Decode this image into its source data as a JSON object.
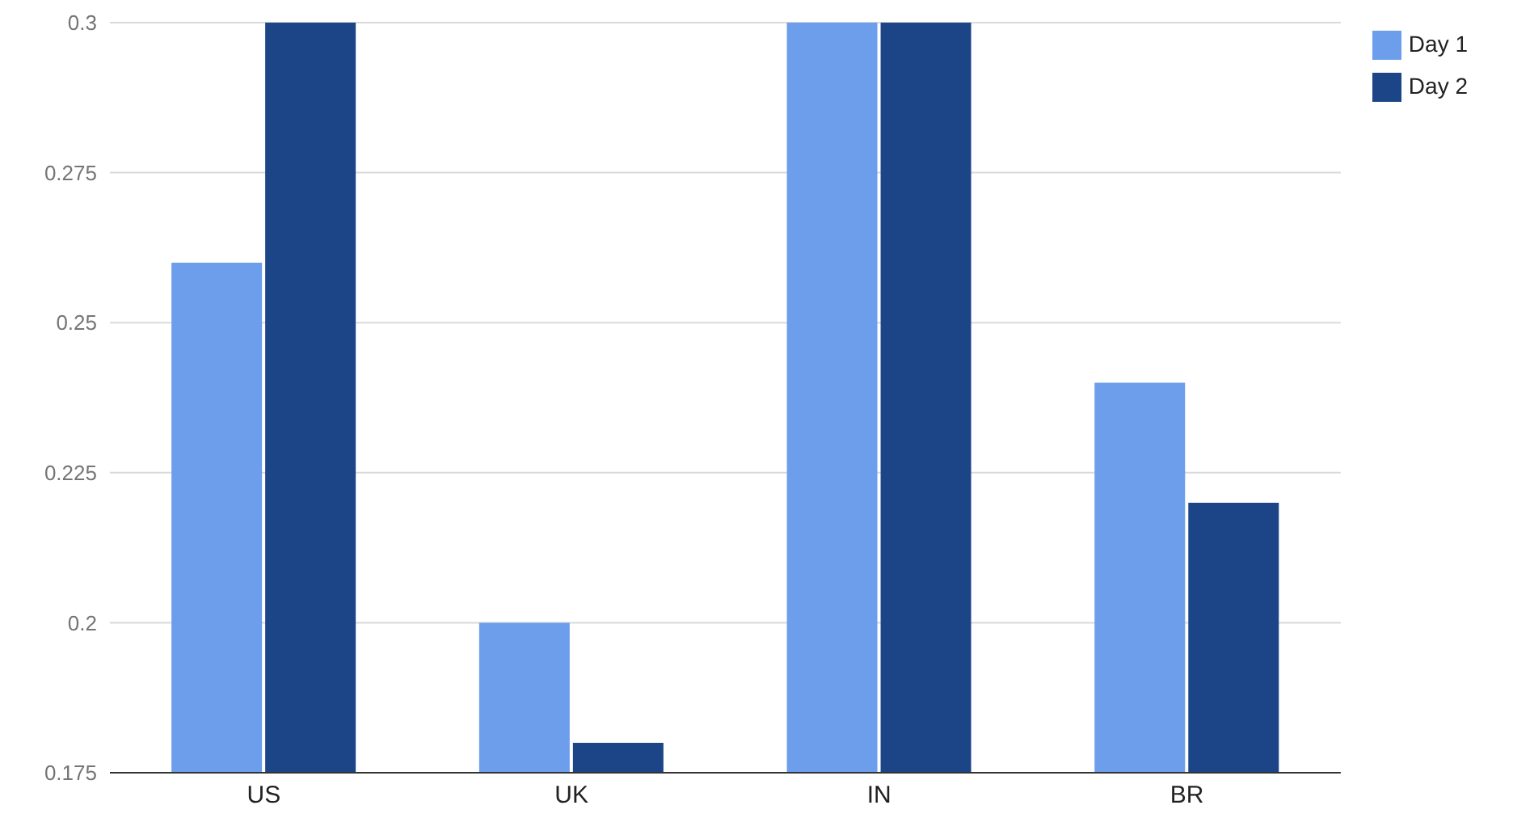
{
  "chart_data": {
    "type": "bar",
    "categories": [
      "US",
      "UK",
      "IN",
      "BR"
    ],
    "series": [
      {
        "name": "Day 1",
        "color": "#6d9eeb",
        "values": [
          0.26,
          0.2,
          0.3,
          0.24
        ]
      },
      {
        "name": "Day 2",
        "color": "#1c4587",
        "values": [
          0.3,
          0.18,
          0.3,
          0.22
        ]
      }
    ],
    "ylim": [
      0.175,
      0.3
    ],
    "yticks": [
      0.175,
      0.2,
      0.225,
      0.25,
      0.275,
      0.3
    ],
    "grid": "y",
    "legend": "top right"
  }
}
